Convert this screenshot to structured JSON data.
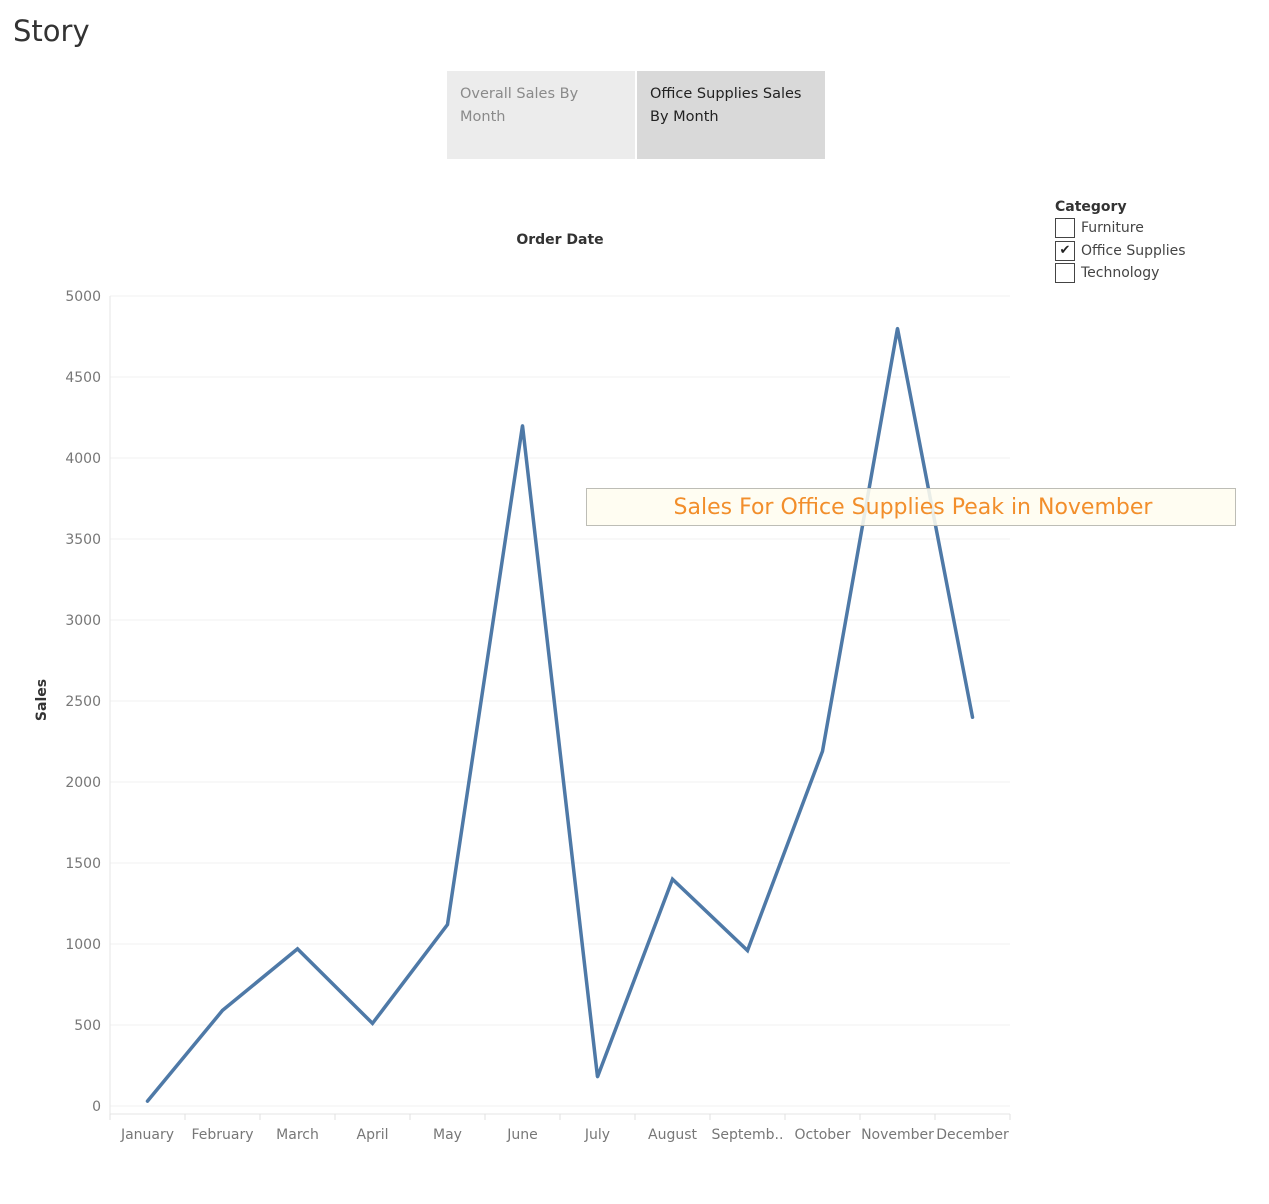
{
  "story": {
    "title": "Story",
    "points": [
      {
        "label": "Overall Sales By Month",
        "active": false
      },
      {
        "label": "Office Supplies  Sales By Month",
        "active": true
      }
    ]
  },
  "legend": {
    "title": "Category",
    "items": [
      {
        "label": "Furniture",
        "checked": false
      },
      {
        "label": "Office Supplies",
        "checked": true
      },
      {
        "label": "Technology",
        "checked": false
      }
    ]
  },
  "annotation": "Sales For Office Supplies Peak in November",
  "chart_data": {
    "type": "line",
    "title": "Order Date",
    "xlabel": "",
    "ylabel": "Sales",
    "categories": [
      "January",
      "February",
      "March",
      "April",
      "May",
      "June",
      "July",
      "August",
      "Septemb..",
      "October",
      "November",
      "December"
    ],
    "series": [
      {
        "values": [
          30,
          590,
          970,
          510,
          1120,
          4200,
          180,
          1400,
          960,
          2190,
          4800,
          2400
        ],
        "color": "#4e79a7"
      }
    ],
    "ylim": [
      0,
      5000
    ],
    "yticks": [
      0,
      500,
      1000,
      1500,
      2000,
      2500,
      3000,
      3500,
      4000,
      4500,
      5000
    ],
    "grid": true
  }
}
